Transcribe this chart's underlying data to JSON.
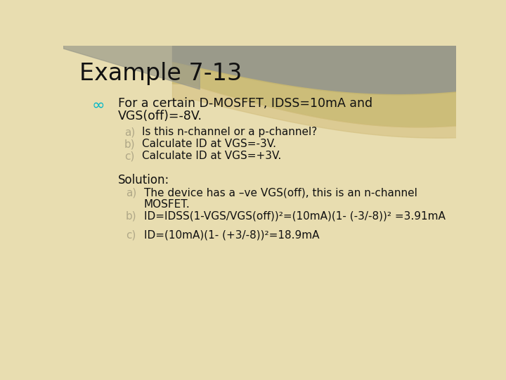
{
  "title": "Example 7-13",
  "title_fontsize": 24,
  "title_color": "#111111",
  "bg_color": "#e8ddb0",
  "text_color": "#111111",
  "faded_color": "#b0a888",
  "bullet_color": "#00b8c8",
  "bullet_text_line1": "For a certain D-MOSFET, IDSS=10mA and",
  "bullet_text_line2": "VGS(off)=-8V.",
  "sub_items": [
    "a)   Is this n-channel or a p-channel?",
    "b)   Calculate ID at VGS=-3V.",
    "c)   Calculate ID at VGS=+3V."
  ],
  "sub_labels": [
    "a)",
    "b)",
    "c)"
  ],
  "solution_label": "Solution:",
  "solution_items_main": [
    "The device has a –ve VGS(off), this is an n-channel",
    "ID=IDSS(1-VGS/VGS(off))²=(10mA)(1- (-3/-8))² =3.91mA",
    "ID=(10mA)(1- (+3/-8))²=18.9mA"
  ],
  "solution_item_a_line2": "MOSFET.",
  "sol_labels": [
    "a)",
    "b)",
    "c)"
  ],
  "wave_gray": "#9a9a8a",
  "wave_tan": "#c8b870",
  "wave_sand": "#d4c080",
  "font_family": "DejaVu Sans"
}
